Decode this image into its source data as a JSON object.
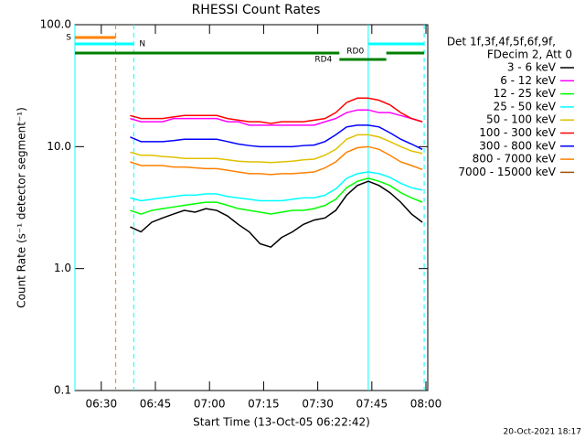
{
  "chart_data": {
    "type": "line",
    "title": "RHESSI Count Rates",
    "xlabel": "Start Time (13-Oct-05 06:22:42)",
    "ylabel": "Count Rate (s⁻¹ detector segment⁻¹)",
    "legend_header": [
      "Det 1f,3f,4f,5f,6f,9f,",
      "FDecim 2, Att 0"
    ],
    "footer": "20-Oct-2021 18:17",
    "log_y": true,
    "xlim": [
      "06:22:42",
      "08:00:30"
    ],
    "xticks": [
      "06:30",
      "06:45",
      "07:00",
      "07:15",
      "07:30",
      "07:45",
      "08:00"
    ],
    "ylim": [
      0.1,
      100
    ],
    "yticks": [
      0.1,
      {
        "value": 1,
        "label": "1.0"
      },
      {
        "value": 10,
        "label": "10.0"
      },
      {
        "value": 100,
        "label": "100.0"
      }
    ],
    "x": [
      "06:38",
      "06:41",
      "06:44",
      "06:47",
      "06:50",
      "06:53",
      "06:56",
      "06:59",
      "07:02",
      "07:05",
      "07:08",
      "07:11",
      "07:14",
      "07:17",
      "07:20",
      "07:23",
      "07:26",
      "07:29",
      "07:32",
      "07:35",
      "07:38",
      "07:41",
      "07:44",
      "07:47",
      "07:50",
      "07:53",
      "07:56",
      "07:59"
    ],
    "series": [
      {
        "name": "3 - 6 keV",
        "color": "#000000",
        "values": [
          2.2,
          2.0,
          2.4,
          2.6,
          2.8,
          3.0,
          2.9,
          3.1,
          3.0,
          2.7,
          2.3,
          2.0,
          1.6,
          1.5,
          1.8,
          2.0,
          2.3,
          2.5,
          2.6,
          3.0,
          4.0,
          4.8,
          5.2,
          4.8,
          4.2,
          3.5,
          2.8,
          2.4
        ]
      },
      {
        "name": "6 - 12 keV",
        "color": "#ff00ff",
        "values": [
          17,
          16,
          16,
          16,
          17,
          17,
          17,
          17,
          17,
          16,
          16,
          15,
          15,
          15,
          15,
          15,
          15,
          15,
          16,
          17,
          19,
          20,
          20,
          19,
          19,
          18,
          17,
          16
        ]
      },
      {
        "name": "12 - 25 keV",
        "color": "#00ff00",
        "values": [
          3.0,
          2.8,
          3.0,
          3.1,
          3.2,
          3.3,
          3.4,
          3.5,
          3.5,
          3.3,
          3.1,
          3.0,
          2.9,
          2.8,
          2.9,
          3.0,
          3.0,
          3.1,
          3.3,
          3.7,
          4.6,
          5.2,
          5.5,
          5.2,
          4.8,
          4.2,
          3.8,
          3.5
        ]
      },
      {
        "name": "25 - 50 keV",
        "color": "#00ffff",
        "values": [
          3.8,
          3.6,
          3.7,
          3.8,
          3.9,
          4.0,
          4.0,
          4.1,
          4.1,
          3.9,
          3.8,
          3.7,
          3.6,
          3.6,
          3.6,
          3.7,
          3.8,
          3.8,
          4.0,
          4.5,
          5.5,
          6.0,
          6.2,
          6.0,
          5.6,
          5.0,
          4.6,
          4.4
        ]
      },
      {
        "name": "50 - 100 keV",
        "color": "#e0c000",
        "values": [
          9.0,
          8.5,
          8.5,
          8.3,
          8.2,
          8.0,
          8.0,
          8.0,
          8.0,
          7.8,
          7.6,
          7.5,
          7.5,
          7.4,
          7.5,
          7.6,
          7.8,
          7.9,
          8.5,
          9.5,
          11.5,
          12.5,
          12.5,
          12.0,
          11.0,
          10.0,
          9.2,
          8.8
        ]
      },
      {
        "name": "100 - 300 keV",
        "color": "#ff0000",
        "values": [
          18,
          17,
          17,
          17,
          17.5,
          18,
          18,
          18,
          18,
          17,
          16.5,
          16,
          16,
          15.5,
          16,
          16,
          16,
          16.5,
          17,
          19,
          23,
          25,
          25,
          24,
          22,
          19,
          17,
          16
        ]
      },
      {
        "name": "300 - 800 keV",
        "color": "#0000ff",
        "values": [
          12,
          11,
          11,
          11,
          11.2,
          11.5,
          11.5,
          11.5,
          11.5,
          11,
          10.5,
          10.2,
          10,
          10,
          10,
          10,
          10.2,
          10.3,
          11,
          12.5,
          14.5,
          15,
          15,
          14.5,
          13,
          11.5,
          10.5,
          9.5
        ]
      },
      {
        "name": "800 - 7000 keV",
        "color": "#ff8000",
        "values": [
          7.5,
          7.0,
          7.0,
          7.0,
          6.8,
          6.8,
          6.7,
          6.6,
          6.6,
          6.4,
          6.2,
          6.0,
          6.0,
          5.9,
          6.0,
          6.0,
          6.1,
          6.2,
          6.7,
          7.5,
          9.0,
          9.8,
          10,
          9.5,
          8.5,
          7.5,
          7.0,
          6.5
        ]
      },
      {
        "name": "7000 - 15000 keV",
        "color": "#a05000",
        "values": [
          null,
          null,
          null,
          null,
          null,
          null,
          null,
          null,
          null,
          null,
          null,
          null,
          null,
          null,
          null,
          null,
          null,
          null,
          null,
          null,
          null,
          null,
          null,
          null,
          null,
          null,
          null,
          null
        ]
      }
    ],
    "vlines": [
      {
        "x": "06:22:42",
        "color": "#00ffff",
        "dashed": false
      },
      {
        "x": "06:34",
        "color": "#ff8000",
        "dashed": true
      },
      {
        "x": "06:39",
        "color": "#00ffff",
        "dashed": true
      },
      {
        "x": "07:44",
        "color": "#00ffff",
        "dashed": false
      },
      {
        "x": "07:59:30",
        "color": "#00ffff",
        "dashed": true
      }
    ],
    "flags": [
      {
        "label": "S",
        "color": "#ff8000",
        "segments": [
          [
            "06:22:42",
            "06:34"
          ]
        ]
      },
      {
        "label": "N",
        "color": "#00ffff",
        "segments": [
          [
            "06:22:42",
            "06:39"
          ],
          [
            "07:44",
            "07:59:30"
          ]
        ]
      },
      {
        "label": "RD0",
        "color": "#008000",
        "segments": [
          [
            "06:22:42",
            "07:36"
          ],
          [
            "07:49",
            "07:59:30"
          ]
        ]
      },
      {
        "label": "RD4",
        "color": "#008000",
        "segments": [
          [
            "07:36",
            "07:49"
          ]
        ]
      }
    ]
  }
}
